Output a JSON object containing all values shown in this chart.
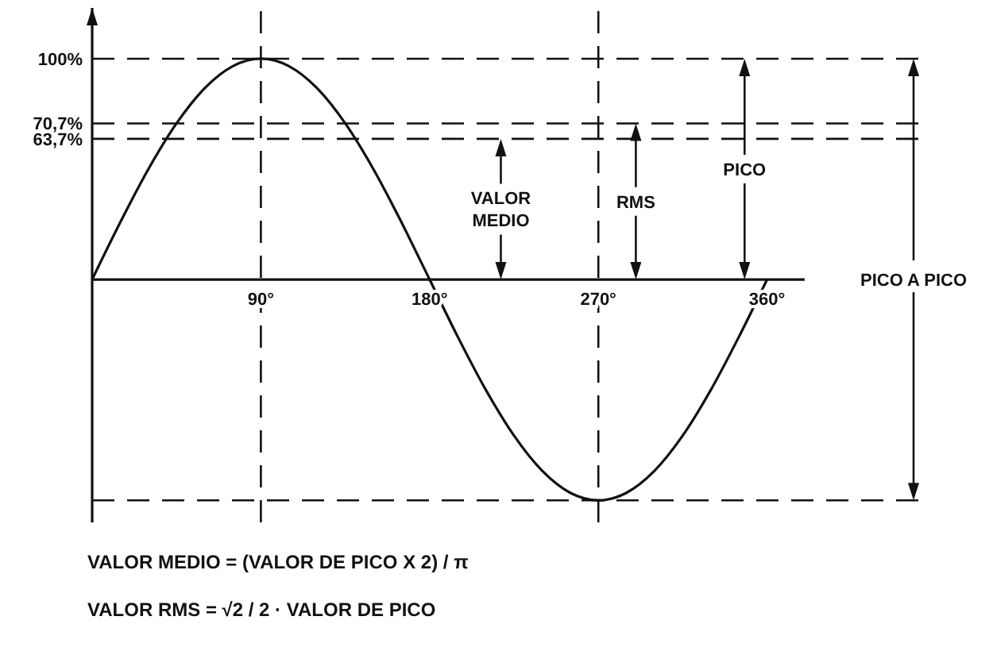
{
  "chart_data": {
    "type": "line",
    "x": [
      0,
      15,
      30,
      45,
      60,
      75,
      90,
      105,
      120,
      135,
      150,
      165,
      180,
      195,
      210,
      225,
      240,
      255,
      270,
      285,
      300,
      315,
      330,
      345,
      360
    ],
    "series": [
      {
        "color": "#111111",
        "values": [
          0,
          25.9,
          50,
          70.7,
          86.6,
          96.6,
          100,
          96.6,
          86.6,
          70.7,
          50,
          25.9,
          0,
          -25.9,
          -50,
          -70.7,
          -86.6,
          -96.6,
          -100,
          -96.6,
          -86.6,
          -70.7,
          -50,
          -25.9,
          0
        ]
      }
    ],
    "xlim": [
      0,
      380
    ],
    "ylim": [
      -110,
      123
    ],
    "xticks": [
      {
        "value": 90,
        "label": "90°"
      },
      {
        "value": 180,
        "label": "180°"
      },
      {
        "value": 270,
        "label": "270°"
      },
      {
        "value": 360,
        "label": "360°"
      }
    ],
    "yticks": [
      {
        "value": 100,
        "label": "100%"
      },
      {
        "value": 70.7,
        "label": "70,7%"
      },
      {
        "value": 63.7,
        "label": "63,7%"
      }
    ],
    "ref_lines": [
      {
        "axis": "y",
        "value": 63.7,
        "line_style": "dashed"
      },
      {
        "axis": "y",
        "value": 70.7,
        "line_style": "dashed"
      },
      {
        "axis": "y",
        "value": 100,
        "line_style": "dashed"
      },
      {
        "axis": "y",
        "value": -100,
        "line_style": "dashed"
      },
      {
        "axis": "x",
        "value": 90,
        "line_style": "dashed"
      },
      {
        "axis": "x",
        "value": 270,
        "line_style": "dashed"
      }
    ],
    "annotations": [
      {
        "text": "VALOR MEDIO",
        "x": 218,
        "y": 63.7
      },
      {
        "text": "RMS",
        "x": 290,
        "y": 70.7
      },
      {
        "text": "PICO",
        "x": 348,
        "y": 100
      },
      "PICO A PICO",
      "VALOR MEDIO = (VALOR DE PICO X 2) / π",
      "VALOR RMS = √2 / 2 · VALOR DE PICO"
    ],
    "grid": false,
    "marker": "none",
    "line_style": "solid"
  }
}
